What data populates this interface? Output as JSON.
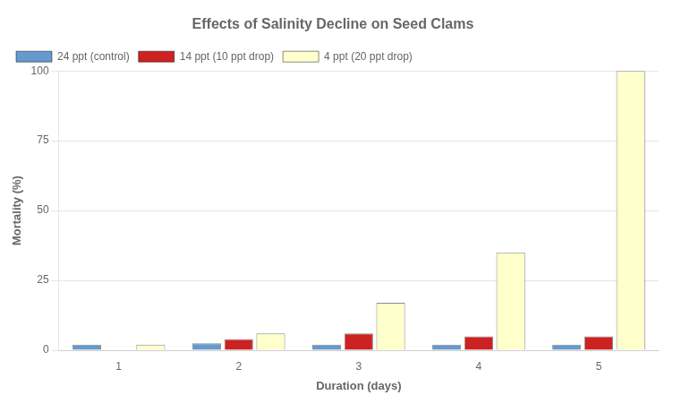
{
  "chart_data": {
    "type": "bar",
    "title": "Effects of Salinity Decline on Seed Clams",
    "xlabel": "Duration (days)",
    "ylabel": "Mortality (%)",
    "categories": [
      1,
      2,
      3,
      4,
      5
    ],
    "series": [
      {
        "name": "24 ppt (control)",
        "color": "#6699CC",
        "values": [
          2.0,
          2.5,
          2.0,
          2.0,
          2.0
        ]
      },
      {
        "name": "14 ppt (10 ppt drop)",
        "color": "#CC2222",
        "values": [
          0.2,
          4.0,
          6.0,
          5.0,
          5.0
        ]
      },
      {
        "name": "4 ppt (20 ppt drop)",
        "color": "#FFFFCC",
        "values": [
          2.0,
          6.0,
          17.0,
          35.0,
          100.0
        ]
      }
    ],
    "ylim": [
      0,
      100
    ],
    "yticks": [
      0,
      25,
      50,
      75,
      100
    ],
    "grid": true,
    "legend": "upper left"
  }
}
